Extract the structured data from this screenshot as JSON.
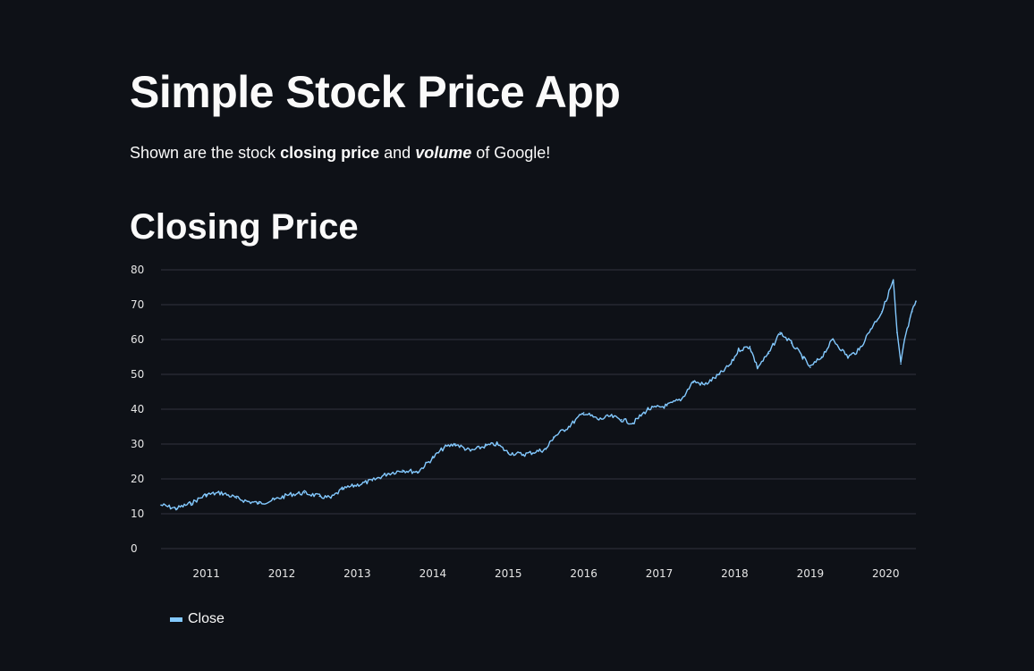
{
  "header": {
    "title": "Simple Stock Price App"
  },
  "intro": {
    "prefix": "Shown are the stock ",
    "bold1": "closing price",
    "middle": " and ",
    "bolditalic": "volume",
    "suffix": " of Google!"
  },
  "section": {
    "title": "Closing Price"
  },
  "colors": {
    "background": "#0e1117",
    "text": "#fafafa",
    "series": "#83c9ff",
    "grid": "#31333f"
  },
  "chart_data": {
    "type": "line",
    "title": "",
    "xlabel": "",
    "ylabel": "",
    "xlim": [
      2010.4,
      2020.4
    ],
    "ylim": [
      0,
      80
    ],
    "yticks": [
      0,
      10,
      20,
      30,
      40,
      50,
      60,
      70,
      80
    ],
    "xticks": [
      "2011",
      "2012",
      "2013",
      "2014",
      "2015",
      "2016",
      "2017",
      "2018",
      "2019",
      "2020"
    ],
    "grid": true,
    "legend_position": "bottom-left",
    "series": [
      {
        "name": "Close",
        "color": "#83c9ff",
        "x": [
          2010.4,
          2010.6,
          2010.8,
          2011.0,
          2011.2,
          2011.4,
          2011.55,
          2011.7,
          2011.9,
          2012.1,
          2012.3,
          2012.5,
          2012.65,
          2012.8,
          2012.95,
          2013.2,
          2013.4,
          2013.6,
          2013.8,
          2014.0,
          2014.15,
          2014.3,
          2014.5,
          2014.7,
          2014.85,
          2015.0,
          2015.2,
          2015.4,
          2015.5,
          2015.6,
          2015.8,
          2016.0,
          2016.2,
          2016.35,
          2016.5,
          2016.65,
          2016.85,
          2017.1,
          2017.3,
          2017.45,
          2017.6,
          2017.8,
          2017.95,
          2018.05,
          2018.2,
          2018.3,
          2018.45,
          2018.6,
          2018.75,
          2018.9,
          2019.0,
          2019.15,
          2019.3,
          2019.5,
          2019.65,
          2019.8,
          2019.95,
          2020.1,
          2020.15,
          2020.2,
          2020.25,
          2020.35,
          2020.4
        ],
        "values": [
          12.5,
          11.5,
          13,
          15.5,
          16,
          14.5,
          13.5,
          13,
          14,
          15.5,
          16,
          15,
          14.5,
          17,
          18,
          19.5,
          21.5,
          22.5,
          22,
          26,
          29,
          30,
          28,
          29.5,
          30,
          27.5,
          27,
          28,
          28.5,
          32,
          35,
          39,
          37,
          38,
          37,
          36,
          40,
          41,
          43,
          48,
          47,
          50,
          53,
          57,
          58,
          52,
          56,
          62,
          59,
          55,
          52,
          55,
          60,
          55,
          57,
          63,
          68,
          77,
          62,
          53,
          60,
          68,
          71
        ]
      }
    ]
  },
  "legend": {
    "label": "Close"
  }
}
